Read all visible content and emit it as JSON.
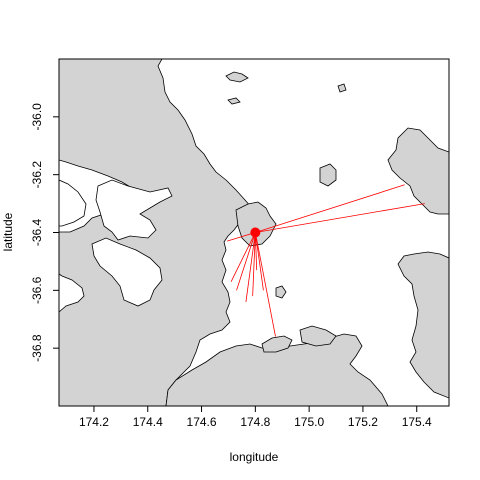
{
  "chart_data": {
    "type": "map",
    "xlabel": "longitude",
    "ylabel": "latitude",
    "xlim": [
      174.07,
      175.52
    ],
    "ylim": [
      -37.0,
      -35.8
    ],
    "x_ticks": [
      174.2,
      174.4,
      174.6,
      174.8,
      175.0,
      175.2,
      175.4
    ],
    "x_tick_labels": [
      "174.2",
      "174.4",
      "174.6",
      "174.8",
      "175.0",
      "175.2",
      "175.4"
    ],
    "y_ticks": [
      -36.0,
      -36.2,
      -36.4,
      -36.6,
      -36.8
    ],
    "y_tick_labels": [
      "-36.0",
      "-36.2",
      "-36.4",
      "-36.6",
      "-36.8"
    ],
    "grid": false,
    "land_color": "#d3d3d3",
    "sea_color": "#ffffff",
    "line_color": "#ff0000",
    "hub": {
      "x": 174.8,
      "y": -36.4
    },
    "connections": [
      {
        "x": 175.355,
        "y": -36.235
      },
      {
        "x": 175.43,
        "y": -36.3
      },
      {
        "x": 174.695,
        "y": -36.43
      },
      {
        "x": 174.71,
        "y": -36.57
      },
      {
        "x": 174.73,
        "y": -36.6
      },
      {
        "x": 174.765,
        "y": -36.64
      },
      {
        "x": 174.79,
        "y": -36.62
      },
      {
        "x": 174.805,
        "y": -36.53
      },
      {
        "x": 174.83,
        "y": -36.6
      },
      {
        "x": 174.875,
        "y": -36.76
      }
    ]
  }
}
